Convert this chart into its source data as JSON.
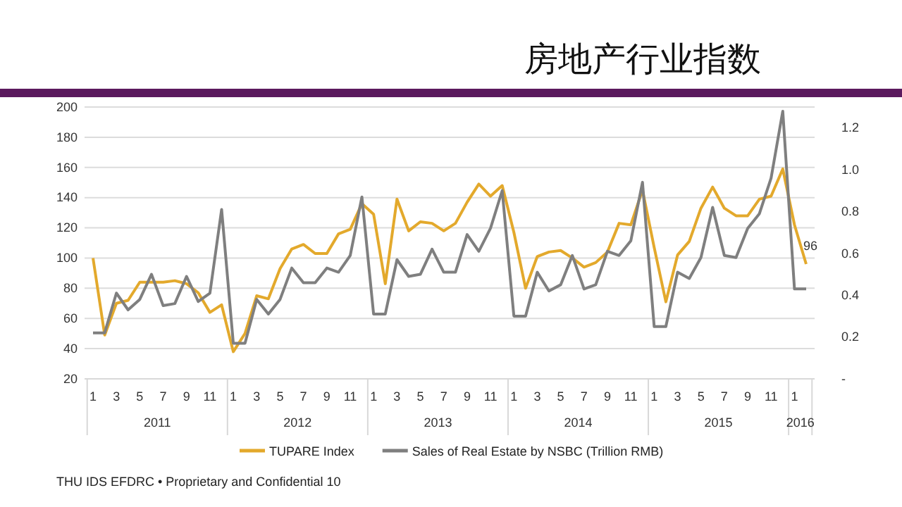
{
  "chart_data": {
    "type": "line",
    "title": "房地产行业指数",
    "categories": [
      "1",
      null,
      "3",
      null,
      "5",
      null,
      "7",
      null,
      "9",
      null,
      "11",
      null,
      "1",
      null,
      "3",
      null,
      "5",
      null,
      "7",
      null,
      "9",
      null,
      "11",
      null,
      "1",
      null,
      "3",
      null,
      "5",
      null,
      "7",
      null,
      "9",
      null,
      "11",
      null,
      "1",
      null,
      "3",
      null,
      "5",
      null,
      "7",
      null,
      "9",
      null,
      "11",
      null,
      "1",
      null,
      "3",
      null,
      "5",
      null,
      "7",
      null,
      "9",
      null,
      "11",
      null,
      "1",
      null
    ],
    "series": [
      {
        "name": "TUPARE Index",
        "color": "#e3a92c",
        "values": [
          100,
          49,
          70,
          72,
          84,
          84,
          84,
          85,
          83,
          77,
          64,
          69,
          38,
          50,
          75,
          73,
          93,
          106,
          109,
          103,
          103,
          116,
          119,
          136,
          129,
          83,
          139,
          118,
          124,
          123,
          118,
          123,
          137,
          149,
          141,
          148,
          117,
          80,
          101,
          104,
          105,
          100,
          94,
          97,
          104,
          123,
          122,
          145,
          107,
          71,
          102,
          111,
          133,
          147,
          133,
          128,
          128,
          139,
          141,
          159,
          122,
          96
        ],
        "value_labels": [
          null,
          null,
          null,
          null,
          null,
          null,
          null,
          null,
          null,
          null,
          null,
          null,
          null,
          null,
          null,
          null,
          null,
          null,
          null,
          null,
          null,
          null,
          null,
          null,
          null,
          null,
          null,
          null,
          null,
          null,
          null,
          null,
          null,
          null,
          null,
          null,
          null,
          null,
          null,
          null,
          null,
          null,
          null,
          null,
          null,
          null,
          null,
          null,
          null,
          null,
          null,
          null,
          null,
          null,
          null,
          null,
          null,
          null,
          null,
          null,
          null,
          "96"
        ]
      },
      {
        "name": "Sales of Real Estate by NSBC (Trillion RMB)",
        "color": "#7f7f7f",
        "axis": "y2",
        "values": [
          0.22,
          0.22,
          0.41,
          0.33,
          0.38,
          0.5,
          0.35,
          0.36,
          0.49,
          0.37,
          0.41,
          0.81,
          0.17,
          0.17,
          0.38,
          0.31,
          0.38,
          0.53,
          0.46,
          0.46,
          0.53,
          0.51,
          0.59,
          0.87,
          0.31,
          0.31,
          0.57,
          0.49,
          0.5,
          0.62,
          0.51,
          0.51,
          0.69,
          0.61,
          0.72,
          0.9,
          0.3,
          0.3,
          0.51,
          0.42,
          0.45,
          0.59,
          0.43,
          0.45,
          0.61,
          0.59,
          0.66,
          0.94,
          0.25,
          0.25,
          0.51,
          0.48,
          0.58,
          0.82,
          0.59,
          0.58,
          0.72,
          0.79,
          0.96,
          1.28,
          0.43,
          0.43
        ]
      }
    ],
    "ylim": [
      20,
      200
    ],
    "yticks": [
      20,
      40,
      60,
      80,
      100,
      120,
      140,
      160,
      180,
      200
    ],
    "y2lim": [
      0,
      1.3
    ],
    "y2ticks": [
      {
        "value": 0,
        "label": "-"
      },
      {
        "value": 0.2,
        "label": "0.2"
      },
      {
        "value": 0.4,
        "label": "0.4"
      },
      {
        "value": 0.6,
        "label": "0.6"
      },
      {
        "value": 0.8,
        "label": "0.8"
      },
      {
        "value": 1.0,
        "label": "1.0"
      },
      {
        "value": 1.2,
        "label": "1.2"
      }
    ],
    "grid": "y",
    "legend": "bottom",
    "marker": "none",
    "line_style": "solid",
    "annotations": [
      "2011",
      "2012",
      "2013",
      "2014",
      "2015",
      "2016",
      "THU IDS EFDRC • Proprietary and Confidential  10"
    ]
  }
}
